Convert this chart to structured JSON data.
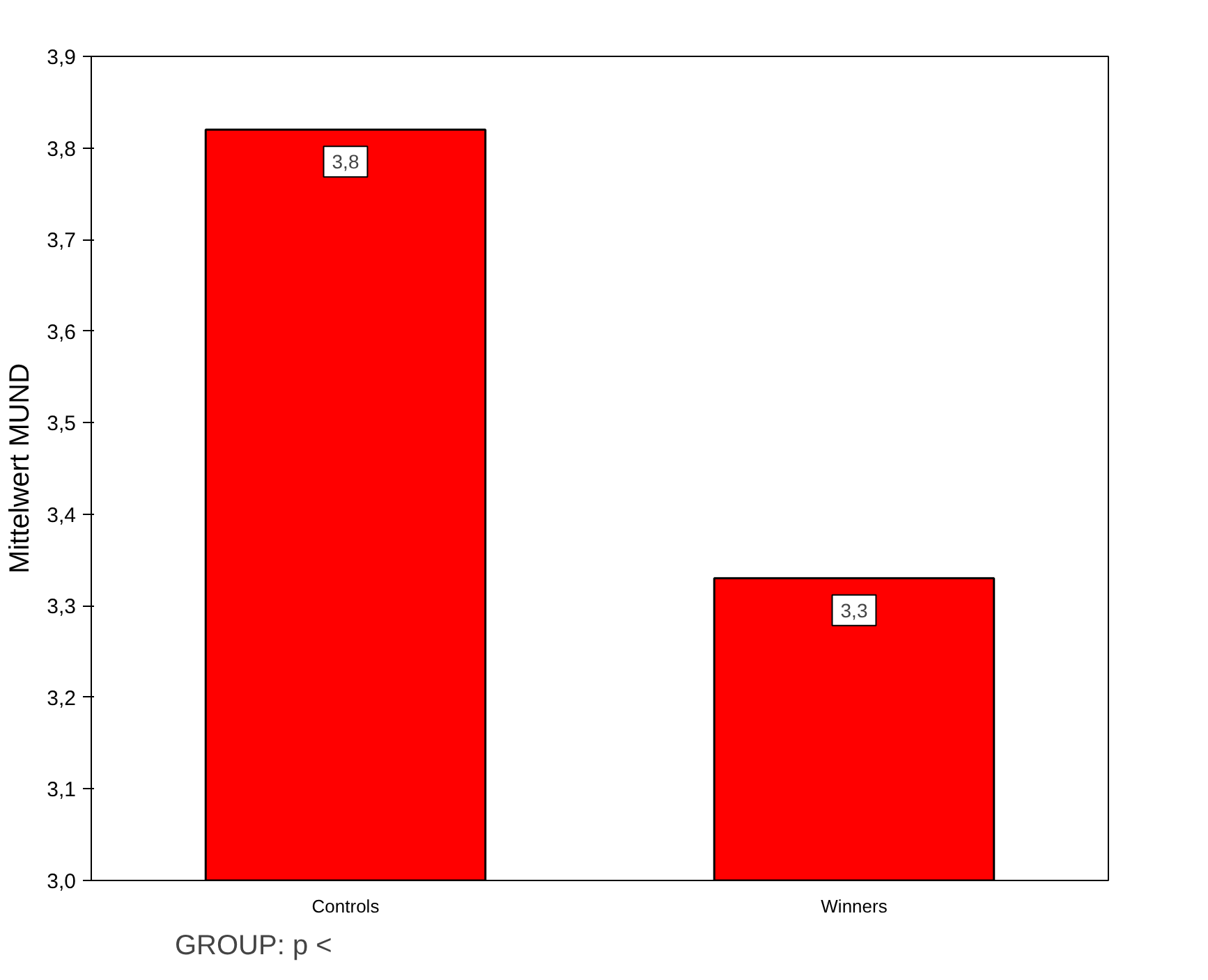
{
  "chart_data": {
    "type": "bar",
    "xlabel": "GROUP: p <",
    "ylabel": "Mittelwert MUND",
    "categories": [
      "Controls",
      "Winners"
    ],
    "series": [
      {
        "color": "#ff0000",
        "values": [
          3.82,
          3.33
        ],
        "value_labels": [
          "3,8",
          "3,3"
        ]
      }
    ],
    "ylim": [
      3.0,
      3.9
    ],
    "yticks": [
      {
        "value": 3.0,
        "label": "3,0"
      },
      {
        "value": 3.1,
        "label": "3,1"
      },
      {
        "value": 3.2,
        "label": "3,2"
      },
      {
        "value": 3.3,
        "label": "3,3"
      },
      {
        "value": 3.4,
        "label": "3,4"
      },
      {
        "value": 3.5,
        "label": "3,5"
      },
      {
        "value": 3.6,
        "label": "3,6"
      },
      {
        "value": 3.7,
        "label": "3,7"
      },
      {
        "value": 3.8,
        "label": "3,8"
      },
      {
        "value": 3.9,
        "label": "3,9"
      }
    ],
    "grid": false
  }
}
